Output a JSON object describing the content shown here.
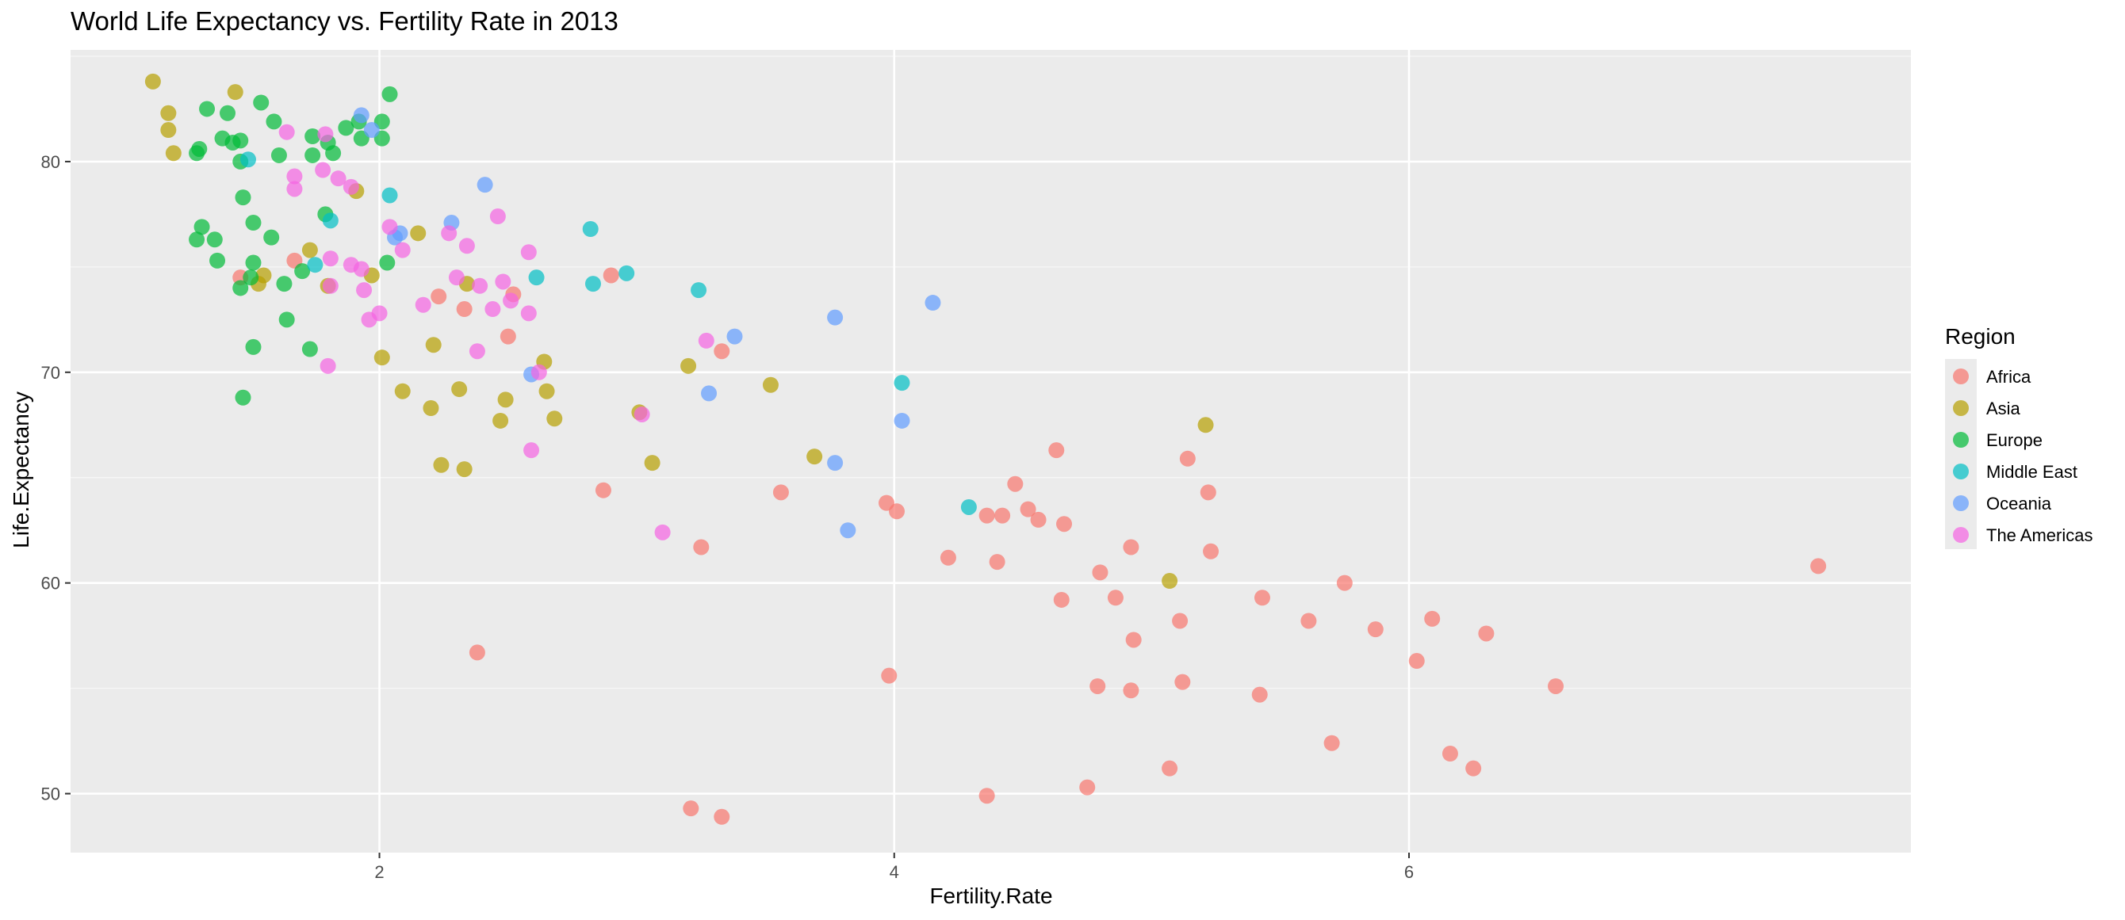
{
  "chart_data": {
    "type": "scatter",
    "title": "World Life Expectancy vs. Fertility Rate in 2013",
    "xlabel": "Fertility.Rate",
    "ylabel": "Life.Expectancy",
    "xlim": [
      0.8,
      7.95
    ],
    "ylim": [
      47.2,
      85.3
    ],
    "x_ticks": [
      2,
      4,
      6
    ],
    "x_tick_labels": [
      "2",
      "4",
      "6"
    ],
    "y_ticks": [
      50,
      60,
      70,
      80
    ],
    "y_tick_labels": [
      "50",
      "60",
      "70",
      "80"
    ],
    "grid": true,
    "legend": {
      "title": "Region",
      "placement": "right"
    },
    "series": [
      {
        "name": "Africa",
        "color": "#F8766D",
        "points": [
          [
            1.46,
            74.5
          ],
          [
            1.67,
            75.3
          ],
          [
            2.23,
            73.6
          ],
          [
            2.33,
            73.0
          ],
          [
            2.52,
            73.7
          ],
          [
            2.5,
            71.7
          ],
          [
            2.9,
            74.6
          ],
          [
            3.33,
            71.0
          ],
          [
            2.38,
            56.7
          ],
          [
            2.87,
            64.4
          ],
          [
            3.25,
            61.7
          ],
          [
            3.21,
            49.3
          ],
          [
            3.33,
            48.9
          ],
          [
            3.56,
            64.3
          ],
          [
            3.97,
            63.8
          ],
          [
            4.01,
            63.4
          ],
          [
            3.98,
            55.6
          ],
          [
            4.21,
            61.2
          ],
          [
            4.36,
            63.2
          ],
          [
            4.42,
            63.2
          ],
          [
            4.4,
            61.0
          ],
          [
            4.36,
            49.9
          ],
          [
            4.47,
            64.7
          ],
          [
            4.52,
            63.5
          ],
          [
            4.56,
            63.0
          ],
          [
            4.63,
            66.3
          ],
          [
            4.66,
            62.8
          ],
          [
            4.65,
            59.2
          ],
          [
            4.8,
            60.5
          ],
          [
            4.86,
            59.3
          ],
          [
            4.79,
            55.1
          ],
          [
            4.75,
            50.3
          ],
          [
            4.92,
            61.7
          ],
          [
            4.93,
            57.3
          ],
          [
            4.92,
            54.9
          ],
          [
            5.14,
            65.9
          ],
          [
            5.22,
            64.3
          ],
          [
            5.23,
            61.5
          ],
          [
            5.11,
            58.2
          ],
          [
            5.12,
            55.3
          ],
          [
            5.07,
            51.2
          ],
          [
            5.43,
            59.3
          ],
          [
            5.42,
            54.7
          ],
          [
            5.61,
            58.2
          ],
          [
            5.75,
            60.0
          ],
          [
            5.87,
            57.8
          ],
          [
            5.7,
            52.4
          ],
          [
            6.09,
            58.3
          ],
          [
            6.03,
            56.3
          ],
          [
            6.16,
            51.9
          ],
          [
            6.25,
            51.2
          ],
          [
            6.3,
            57.6
          ],
          [
            6.57,
            55.1
          ],
          [
            7.59,
            60.8
          ]
        ]
      },
      {
        "name": "Asia",
        "color": "#B79F00",
        "points": [
          [
            1.12,
            83.8
          ],
          [
            1.44,
            83.3
          ],
          [
            1.18,
            82.3
          ],
          [
            1.18,
            81.5
          ],
          [
            1.2,
            80.4
          ],
          [
            1.91,
            78.6
          ],
          [
            1.73,
            75.8
          ],
          [
            1.55,
            74.6
          ],
          [
            1.53,
            74.2
          ],
          [
            1.8,
            74.1
          ],
          [
            1.97,
            74.6
          ],
          [
            2.15,
            76.6
          ],
          [
            2.34,
            74.2
          ],
          [
            2.64,
            70.5
          ],
          [
            2.01,
            70.7
          ],
          [
            2.21,
            71.3
          ],
          [
            2.09,
            69.1
          ],
          [
            2.2,
            68.3
          ],
          [
            2.31,
            69.2
          ],
          [
            2.49,
            68.7
          ],
          [
            2.47,
            67.7
          ],
          [
            2.65,
            69.1
          ],
          [
            2.68,
            67.8
          ],
          [
            2.24,
            65.6
          ],
          [
            2.33,
            65.4
          ],
          [
            3.01,
            68.1
          ],
          [
            3.06,
            65.7
          ],
          [
            3.2,
            70.3
          ],
          [
            3.52,
            69.4
          ],
          [
            3.69,
            66.0
          ],
          [
            5.07,
            60.1
          ],
          [
            5.21,
            67.5
          ]
        ]
      },
      {
        "name": "Europe",
        "color": "#00BA38",
        "points": [
          [
            1.54,
            82.8
          ],
          [
            1.41,
            82.3
          ],
          [
            1.33,
            82.5
          ],
          [
            2.04,
            83.2
          ],
          [
            1.92,
            81.9
          ],
          [
            2.01,
            81.9
          ],
          [
            1.59,
            81.9
          ],
          [
            1.87,
            81.6
          ],
          [
            1.93,
            81.1
          ],
          [
            2.01,
            81.1
          ],
          [
            1.39,
            81.1
          ],
          [
            1.43,
            80.9
          ],
          [
            1.46,
            81.0
          ],
          [
            1.3,
            80.6
          ],
          [
            1.74,
            81.2
          ],
          [
            1.8,
            80.9
          ],
          [
            1.29,
            80.4
          ],
          [
            1.61,
            80.3
          ],
          [
            1.74,
            80.3
          ],
          [
            1.82,
            80.4
          ],
          [
            1.46,
            80.0
          ],
          [
            1.47,
            78.3
          ],
          [
            1.79,
            77.5
          ],
          [
            1.51,
            77.1
          ],
          [
            1.31,
            76.9
          ],
          [
            1.36,
            76.3
          ],
          [
            1.29,
            76.3
          ],
          [
            1.58,
            76.4
          ],
          [
            1.37,
            75.3
          ],
          [
            1.51,
            75.2
          ],
          [
            2.03,
            75.2
          ],
          [
            1.7,
            74.8
          ],
          [
            1.63,
            74.2
          ],
          [
            1.46,
            74.0
          ],
          [
            1.5,
            74.5
          ],
          [
            1.64,
            72.5
          ],
          [
            1.73,
            71.1
          ],
          [
            1.51,
            71.2
          ],
          [
            1.47,
            68.8
          ]
        ]
      },
      {
        "name": "Middle East",
        "color": "#00BFC4",
        "points": [
          [
            1.49,
            80.1
          ],
          [
            2.04,
            78.4
          ],
          [
            1.81,
            77.2
          ],
          [
            1.75,
            75.1
          ],
          [
            2.82,
            76.8
          ],
          [
            2.83,
            74.2
          ],
          [
            2.96,
            74.7
          ],
          [
            2.61,
            74.5
          ],
          [
            3.24,
            73.9
          ],
          [
            4.03,
            69.5
          ],
          [
            4.29,
            63.6
          ]
        ]
      },
      {
        "name": "Oceania",
        "color": "#619CFF",
        "points": [
          [
            1.93,
            82.2
          ],
          [
            1.97,
            81.5
          ],
          [
            2.41,
            78.9
          ],
          [
            2.28,
            77.1
          ],
          [
            2.06,
            76.4
          ],
          [
            2.08,
            76.6
          ],
          [
            2.59,
            69.9
          ],
          [
            3.28,
            69.0
          ],
          [
            3.38,
            71.7
          ],
          [
            3.77,
            72.6
          ],
          [
            4.15,
            73.3
          ],
          [
            4.03,
            67.7
          ],
          [
            3.77,
            65.7
          ],
          [
            3.82,
            62.5
          ]
        ]
      },
      {
        "name": "The Americas",
        "color": "#F564E3",
        "points": [
          [
            1.64,
            81.4
          ],
          [
            1.79,
            81.3
          ],
          [
            1.67,
            79.3
          ],
          [
            1.78,
            79.6
          ],
          [
            1.84,
            79.2
          ],
          [
            1.89,
            78.8
          ],
          [
            1.67,
            78.7
          ],
          [
            2.04,
            76.9
          ],
          [
            2.27,
            76.6
          ],
          [
            2.46,
            77.4
          ],
          [
            2.09,
            75.8
          ],
          [
            2.34,
            76.0
          ],
          [
            2.58,
            75.7
          ],
          [
            1.81,
            75.4
          ],
          [
            1.89,
            75.1
          ],
          [
            1.93,
            74.9
          ],
          [
            2.3,
            74.5
          ],
          [
            2.48,
            74.3
          ],
          [
            2.39,
            74.1
          ],
          [
            1.81,
            74.1
          ],
          [
            1.94,
            73.9
          ],
          [
            2.51,
            73.4
          ],
          [
            2.17,
            73.2
          ],
          [
            2.44,
            73.0
          ],
          [
            2.58,
            72.8
          ],
          [
            2.0,
            72.8
          ],
          [
            1.96,
            72.5
          ],
          [
            2.38,
            71.0
          ],
          [
            3.27,
            71.5
          ],
          [
            1.8,
            70.3
          ],
          [
            2.62,
            70.0
          ],
          [
            3.02,
            68.0
          ],
          [
            2.59,
            66.3
          ],
          [
            3.1,
            62.4
          ]
        ]
      }
    ]
  }
}
